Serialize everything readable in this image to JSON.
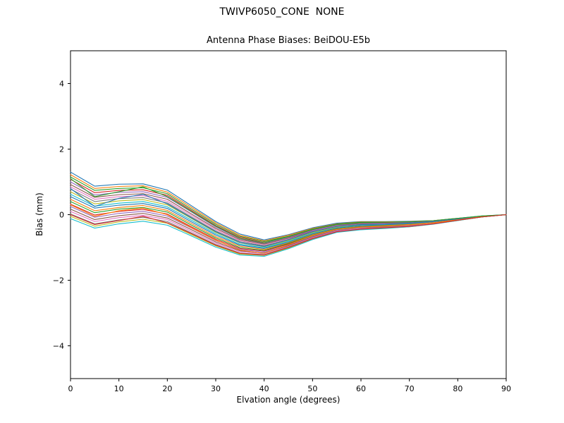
{
  "chart_data": {
    "type": "line",
    "suptitle": "TWIVP6050_CONE  NONE",
    "title": "Antenna Phase Biases: BeiDOU-E5b",
    "xlabel": "Elvation angle (degrees)",
    "ylabel": "Bias (mm)",
    "xlim": [
      0,
      90
    ],
    "ylim": [
      -5,
      5
    ],
    "xticks": [
      0,
      10,
      20,
      30,
      40,
      50,
      60,
      70,
      80,
      90
    ],
    "yticks": [
      -4,
      -2,
      0,
      2,
      4
    ],
    "grid": false,
    "legend": "none",
    "x": [
      0,
      5,
      10,
      15,
      20,
      25,
      30,
      35,
      40,
      45,
      50,
      55,
      60,
      65,
      70,
      75,
      80,
      85,
      90
    ],
    "series": [
      {
        "color": "#1f77b4",
        "values": [
          1.3,
          0.87,
          0.93,
          0.94,
          0.75,
          0.27,
          -0.21,
          -0.59,
          -0.77,
          -0.61,
          -0.4,
          -0.26,
          -0.21,
          -0.21,
          -0.2,
          -0.18,
          -0.11,
          -0.04,
          0
        ]
      },
      {
        "color": "#ff7f0e",
        "values": [
          1.22,
          0.8,
          0.86,
          0.88,
          0.69,
          0.22,
          -0.25,
          -0.63,
          -0.8,
          -0.63,
          -0.42,
          -0.28,
          -0.22,
          -0.22,
          -0.21,
          -0.18,
          -0.11,
          -0.05,
          0
        ]
      },
      {
        "color": "#2ca02c",
        "values": [
          1.15,
          0.74,
          0.8,
          0.82,
          0.64,
          0.17,
          -0.29,
          -0.66,
          -0.82,
          -0.66,
          -0.44,
          -0.29,
          -0.23,
          -0.23,
          -0.22,
          -0.19,
          -0.12,
          -0.05,
          0
        ]
      },
      {
        "color": "#d62728",
        "values": [
          1.08,
          0.67,
          0.74,
          0.76,
          0.59,
          0.13,
          -0.33,
          -0.69,
          -0.85,
          -0.68,
          -0.46,
          -0.3,
          -0.25,
          -0.24,
          -0.23,
          -0.19,
          -0.12,
          -0.05,
          0
        ]
      },
      {
        "color": "#9467bd",
        "values": [
          1.0,
          0.6,
          0.68,
          0.7,
          0.53,
          0.08,
          -0.38,
          -0.73,
          -0.88,
          -0.7,
          -0.48,
          -0.32,
          -0.26,
          -0.26,
          -0.24,
          -0.2,
          -0.13,
          -0.05,
          0
        ]
      },
      {
        "color": "#8c564b",
        "values": [
          0.92,
          0.53,
          0.61,
          0.64,
          0.47,
          0.02,
          -0.42,
          -0.76,
          -0.9,
          -0.72,
          -0.5,
          -0.34,
          -0.27,
          -0.27,
          -0.25,
          -0.21,
          -0.13,
          -0.05,
          0
        ]
      },
      {
        "color": "#e377c2",
        "values": [
          0.85,
          0.47,
          0.55,
          0.58,
          0.41,
          -0.02,
          -0.46,
          -0.79,
          -0.93,
          -0.75,
          -0.51,
          -0.35,
          -0.29,
          -0.28,
          -0.26,
          -0.21,
          -0.13,
          -0.05,
          0
        ]
      },
      {
        "color": "#7f7f7f",
        "values": [
          0.78,
          0.4,
          0.49,
          0.52,
          0.36,
          -0.07,
          -0.5,
          -0.82,
          -0.95,
          -0.77,
          -0.53,
          -0.36,
          -0.3,
          -0.29,
          -0.27,
          -0.22,
          -0.14,
          -0.05,
          0
        ]
      },
      {
        "color": "#bcbd22",
        "values": [
          0.7,
          0.33,
          0.42,
          0.46,
          0.3,
          -0.12,
          -0.54,
          -0.86,
          -0.98,
          -0.79,
          -0.55,
          -0.38,
          -0.31,
          -0.3,
          -0.28,
          -0.22,
          -0.14,
          -0.06,
          0
        ]
      },
      {
        "color": "#17becf",
        "values": [
          0.62,
          0.26,
          0.35,
          0.4,
          0.24,
          -0.17,
          -0.58,
          -0.9,
          -1.01,
          -0.81,
          -0.57,
          -0.4,
          -0.33,
          -0.31,
          -0.29,
          -0.23,
          -0.14,
          -0.06,
          0
        ]
      },
      {
        "color": "#1f77b4",
        "values": [
          0.55,
          0.2,
          0.29,
          0.34,
          0.19,
          -0.22,
          -0.62,
          -0.93,
          -1.03,
          -0.84,
          -0.59,
          -0.41,
          -0.34,
          -0.32,
          -0.29,
          -0.24,
          -0.15,
          -0.06,
          0
        ]
      },
      {
        "color": "#ff7f0e",
        "values": [
          0.47,
          0.12,
          0.22,
          0.28,
          0.13,
          -0.27,
          -0.67,
          -0.96,
          -1.06,
          -0.86,
          -0.61,
          -0.43,
          -0.36,
          -0.33,
          -0.3,
          -0.24,
          -0.15,
          -0.06,
          0
        ]
      },
      {
        "color": "#2ca02c",
        "values": [
          0.4,
          0.06,
          0.17,
          0.22,
          0.08,
          -0.32,
          -0.71,
          -1.0,
          -1.09,
          -0.88,
          -0.63,
          -0.44,
          -0.37,
          -0.34,
          -0.31,
          -0.25,
          -0.16,
          -0.06,
          0
        ]
      },
      {
        "color": "#d62728",
        "values": [
          0.32,
          -0.01,
          0.1,
          0.16,
          0.02,
          -0.37,
          -0.75,
          -1.03,
          -1.11,
          -0.9,
          -0.65,
          -0.46,
          -0.38,
          -0.36,
          -0.32,
          -0.25,
          -0.16,
          -0.06,
          0
        ]
      },
      {
        "color": "#9467bd",
        "values": [
          0.25,
          -0.08,
          0.04,
          0.1,
          -0.04,
          -0.41,
          -0.79,
          -1.06,
          -1.14,
          -0.93,
          -0.66,
          -0.47,
          -0.4,
          -0.37,
          -0.33,
          -0.26,
          -0.16,
          -0.07,
          0
        ]
      },
      {
        "color": "#8c564b",
        "values": [
          0.17,
          -0.15,
          -0.03,
          0.04,
          -0.1,
          -0.46,
          -0.83,
          -1.1,
          -1.17,
          -0.95,
          -0.68,
          -0.49,
          -0.41,
          -0.38,
          -0.34,
          -0.27,
          -0.17,
          -0.07,
          0
        ]
      },
      {
        "color": "#e377c2",
        "values": [
          0.1,
          -0.21,
          -0.09,
          -0.02,
          -0.15,
          -0.51,
          -0.87,
          -1.13,
          -1.19,
          -0.97,
          -0.7,
          -0.5,
          -0.42,
          -0.39,
          -0.35,
          -0.27,
          -0.17,
          -0.07,
          0
        ]
      },
      {
        "color": "#7f7f7f",
        "values": [
          0.02,
          -0.28,
          -0.16,
          -0.08,
          -0.21,
          -0.56,
          -0.91,
          -1.17,
          -1.22,
          -0.99,
          -0.72,
          -0.52,
          -0.44,
          -0.4,
          -0.36,
          -0.28,
          -0.17,
          -0.07,
          0
        ]
      },
      {
        "color": "#bcbd22",
        "values": [
          -0.05,
          -0.35,
          -0.22,
          -0.14,
          -0.26,
          -0.61,
          -0.95,
          -1.2,
          -1.24,
          -1.02,
          -0.74,
          -0.53,
          -0.45,
          -0.41,
          -0.37,
          -0.28,
          -0.18,
          -0.07,
          0
        ]
      },
      {
        "color": "#17becf",
        "values": [
          -0.12,
          -0.41,
          -0.28,
          -0.2,
          -0.32,
          -0.65,
          -0.99,
          -1.23,
          -1.27,
          -1.04,
          -0.76,
          -0.54,
          -0.46,
          -0.42,
          -0.37,
          -0.29,
          -0.18,
          -0.07,
          0
        ]
      },
      {
        "color": "#1f77b4",
        "values": [
          0.8,
          0.25,
          0.5,
          0.62,
          0.33,
          -0.1,
          -0.52,
          -0.85,
          -0.97,
          -0.76,
          -0.52,
          -0.36,
          -0.3,
          -0.29,
          -0.26,
          -0.21,
          -0.13,
          -0.05,
          0
        ]
      },
      {
        "color": "#ff7f0e",
        "values": [
          0.3,
          -0.05,
          0.12,
          0.2,
          0.0,
          -0.4,
          -0.78,
          -1.08,
          -1.18,
          -0.92,
          -0.64,
          -0.45,
          -0.38,
          -0.35,
          -0.31,
          -0.25,
          -0.16,
          -0.06,
          0
        ]
      },
      {
        "color": "#2ca02c",
        "values": [
          1.1,
          0.55,
          0.7,
          0.85,
          0.55,
          0.1,
          -0.35,
          -0.72,
          -0.86,
          -0.67,
          -0.45,
          -0.3,
          -0.24,
          -0.23,
          -0.22,
          -0.18,
          -0.11,
          -0.04,
          0
        ]
      },
      {
        "color": "#d62728",
        "values": [
          0.0,
          -0.3,
          -0.18,
          -0.05,
          -0.25,
          -0.58,
          -0.93,
          -1.18,
          -1.23,
          -1.0,
          -0.73,
          -0.52,
          -0.44,
          -0.4,
          -0.36,
          -0.28,
          -0.17,
          -0.07,
          0
        ]
      }
    ]
  }
}
